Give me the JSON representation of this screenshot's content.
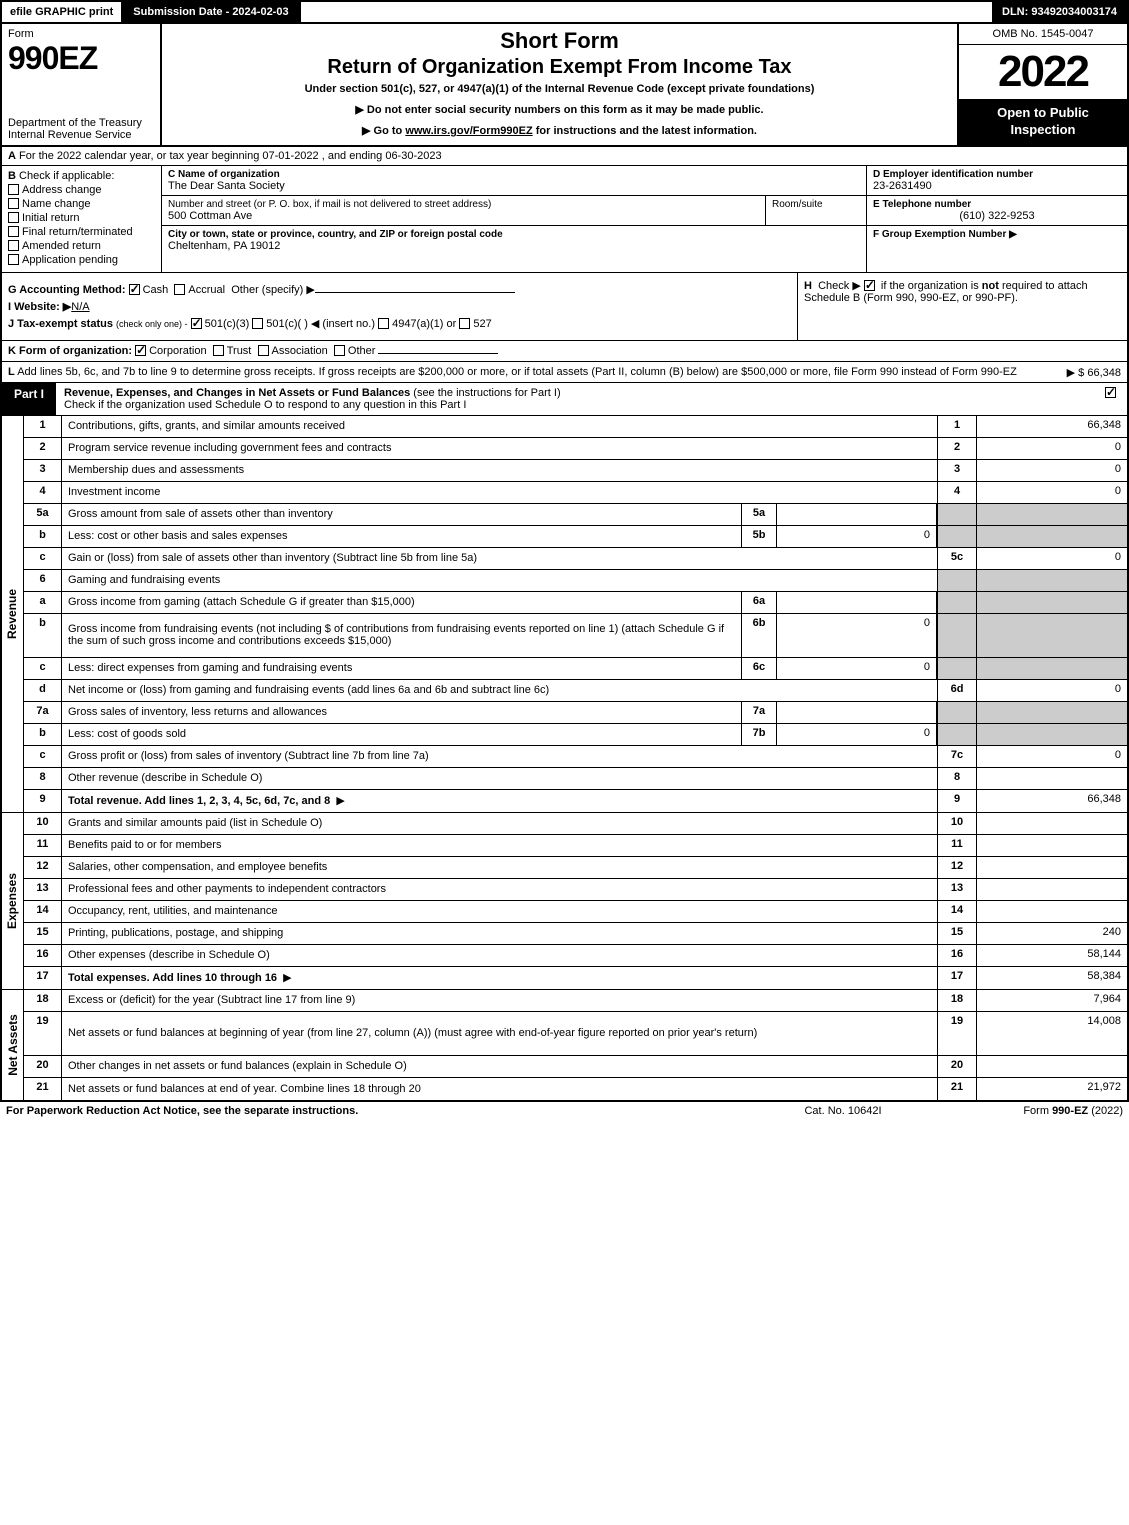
{
  "top": {
    "efile": "efile GRAPHIC print",
    "submission": "Submission Date - 2024-02-03",
    "dln": "DLN: 93492034003174"
  },
  "header": {
    "form_label": "Form",
    "form_number": "990EZ",
    "dept": "Department of the Treasury\nInternal Revenue Service",
    "short_form": "Short Form",
    "title": "Return of Organization Exempt From Income Tax",
    "subtitle": "Under section 501(c), 527, or 4947(a)(1) of the Internal Revenue Code (except private foundations)",
    "note1": "▶ Do not enter social security numbers on this form as it may be made public.",
    "note2_pre": "▶ Go to ",
    "note2_link": "www.irs.gov/Form990EZ",
    "note2_post": " for instructions and the latest information.",
    "omb": "OMB No. 1545-0047",
    "year": "2022",
    "open": "Open to Public Inspection"
  },
  "rowA": {
    "label": "A",
    "text": "For the 2022 calendar year, or tax year beginning 07-01-2022 , and ending 06-30-2023"
  },
  "colB": {
    "label": "B",
    "check_if": "Check if applicable:",
    "items": [
      "Address change",
      "Name change",
      "Initial return",
      "Final return/terminated",
      "Amended return",
      "Application pending"
    ]
  },
  "colC": {
    "name_lbl": "C Name of organization",
    "name": "The Dear Santa Society",
    "addr_lbl": "Number and street (or P. O. box, if mail is not delivered to street address)",
    "addr": "500 Cottman Ave",
    "room_lbl": "Room/suite",
    "city_lbl": "City or town, state or province, country, and ZIP or foreign postal code",
    "city": "Cheltenham, PA  19012"
  },
  "colDEF": {
    "d_lbl": "D Employer identification number",
    "d_val": "23-2631490",
    "e_lbl": "E Telephone number",
    "e_val": "(610) 322-9253",
    "f_lbl": "F Group Exemption Number ▶"
  },
  "rowG": {
    "g_lbl": "G Accounting Method:",
    "g_cash": "Cash",
    "g_accrual": "Accrual",
    "g_other": "Other (specify) ▶",
    "i_lbl": "I Website: ▶",
    "i_val": "N/A",
    "j_lbl": "J Tax-exempt status",
    "j_note": "(check only one) -",
    "j_501c3": "501(c)(3)",
    "j_501c": "501(c)(  ) ◀ (insert no.)",
    "j_4947": "4947(a)(1) or",
    "j_527": "527"
  },
  "rowH": {
    "h_lbl": "H",
    "h_text": "Check ▶ ☑ if the organization is not required to attach Schedule B (Form 990, 990-EZ, or 990-PF)."
  },
  "rowK": {
    "k_lbl": "K Form of organization:",
    "k_corp": "Corporation",
    "k_trust": "Trust",
    "k_assoc": "Association",
    "k_other": "Other"
  },
  "rowL": {
    "l_lbl": "L",
    "l_text": "Add lines 5b, 6c, and 7b to line 9 to determine gross receipts. If gross receipts are $200,000 or more, or if total assets (Part II, column (B) below) are $500,000 or more, file Form 990 instead of Form 990-EZ",
    "l_amt": "▶ $ 66,348"
  },
  "partI": {
    "label": "Part I",
    "title": "Revenue, Expenses, and Changes in Net Assets or Fund Balances",
    "title_note": "(see the instructions for Part I)",
    "check_note": "Check if the organization used Schedule O to respond to any question in this Part I"
  },
  "revenue": {
    "side": "Revenue",
    "rows": [
      {
        "n": "1",
        "d": "Contributions, gifts, grants, and similar amounts received",
        "ln": "1",
        "amt": "66,348"
      },
      {
        "n": "2",
        "d": "Program service revenue including government fees and contracts",
        "ln": "2",
        "amt": "0"
      },
      {
        "n": "3",
        "d": "Membership dues and assessments",
        "ln": "3",
        "amt": "0"
      },
      {
        "n": "4",
        "d": "Investment income",
        "ln": "4",
        "amt": "0"
      },
      {
        "n": "5a",
        "d": "Gross amount from sale of assets other than inventory",
        "sn": "5a",
        "sv": "",
        "shaded": true
      },
      {
        "n": "b",
        "d": "Less: cost or other basis and sales expenses",
        "sn": "5b",
        "sv": "0",
        "shaded": true
      },
      {
        "n": "c",
        "d": "Gain or (loss) from sale of assets other than inventory (Subtract line 5b from line 5a)",
        "ln": "5c",
        "amt": "0"
      },
      {
        "n": "6",
        "d": "Gaming and fundraising events",
        "shaded_all": true
      },
      {
        "n": "a",
        "d": "Gross income from gaming (attach Schedule G if greater than $15,000)",
        "sn": "6a",
        "sv": "",
        "shaded": true
      },
      {
        "n": "b",
        "d": "Gross income from fundraising events (not including $                      of contributions from fundraising events reported on line 1) (attach Schedule G if the sum of such gross income and contributions exceeds $15,000)",
        "sn": "6b",
        "sv": "0",
        "shaded": true,
        "tall": true
      },
      {
        "n": "c",
        "d": "Less: direct expenses from gaming and fundraising events",
        "sn": "6c",
        "sv": "0",
        "shaded": true
      },
      {
        "n": "d",
        "d": "Net income or (loss) from gaming and fundraising events (add lines 6a and 6b and subtract line 6c)",
        "ln": "6d",
        "amt": "0"
      },
      {
        "n": "7a",
        "d": "Gross sales of inventory, less returns and allowances",
        "sn": "7a",
        "sv": "",
        "shaded": true
      },
      {
        "n": "b",
        "d": "Less: cost of goods sold",
        "sn": "7b",
        "sv": "0",
        "shaded": true
      },
      {
        "n": "c",
        "d": "Gross profit or (loss) from sales of inventory (Subtract line 7b from line 7a)",
        "ln": "7c",
        "amt": "0"
      },
      {
        "n": "8",
        "d": "Other revenue (describe in Schedule O)",
        "ln": "8",
        "amt": ""
      },
      {
        "n": "9",
        "d": "Total revenue. Add lines 1, 2, 3, 4, 5c, 6d, 7c, and 8",
        "ln": "9",
        "amt": "66,348",
        "bold": true,
        "arrow": true
      }
    ]
  },
  "expenses": {
    "side": "Expenses",
    "rows": [
      {
        "n": "10",
        "d": "Grants and similar amounts paid (list in Schedule O)",
        "ln": "10",
        "amt": ""
      },
      {
        "n": "11",
        "d": "Benefits paid to or for members",
        "ln": "11",
        "amt": ""
      },
      {
        "n": "12",
        "d": "Salaries, other compensation, and employee benefits",
        "ln": "12",
        "amt": ""
      },
      {
        "n": "13",
        "d": "Professional fees and other payments to independent contractors",
        "ln": "13",
        "amt": ""
      },
      {
        "n": "14",
        "d": "Occupancy, rent, utilities, and maintenance",
        "ln": "14",
        "amt": ""
      },
      {
        "n": "15",
        "d": "Printing, publications, postage, and shipping",
        "ln": "15",
        "amt": "240"
      },
      {
        "n": "16",
        "d": "Other expenses (describe in Schedule O)",
        "ln": "16",
        "amt": "58,144"
      },
      {
        "n": "17",
        "d": "Total expenses. Add lines 10 through 16",
        "ln": "17",
        "amt": "58,384",
        "bold": true,
        "arrow": true
      }
    ]
  },
  "netassets": {
    "side": "Net Assets",
    "rows": [
      {
        "n": "18",
        "d": "Excess or (deficit) for the year (Subtract line 17 from line 9)",
        "ln": "18",
        "amt": "7,964"
      },
      {
        "n": "19",
        "d": "Net assets or fund balances at beginning of year (from line 27, column (A)) (must agree with end-of-year figure reported on prior year's return)",
        "ln": "19",
        "amt": "14,008",
        "tall": true
      },
      {
        "n": "20",
        "d": "Other changes in net assets or fund balances (explain in Schedule O)",
        "ln": "20",
        "amt": ""
      },
      {
        "n": "21",
        "d": "Net assets or fund balances at end of year. Combine lines 18 through 20",
        "ln": "21",
        "amt": "21,972"
      }
    ]
  },
  "footer": {
    "left": "For Paperwork Reduction Act Notice, see the separate instructions.",
    "mid": "Cat. No. 10642I",
    "right_pre": "Form ",
    "right_bold": "990-EZ",
    "right_post": " (2022)"
  }
}
